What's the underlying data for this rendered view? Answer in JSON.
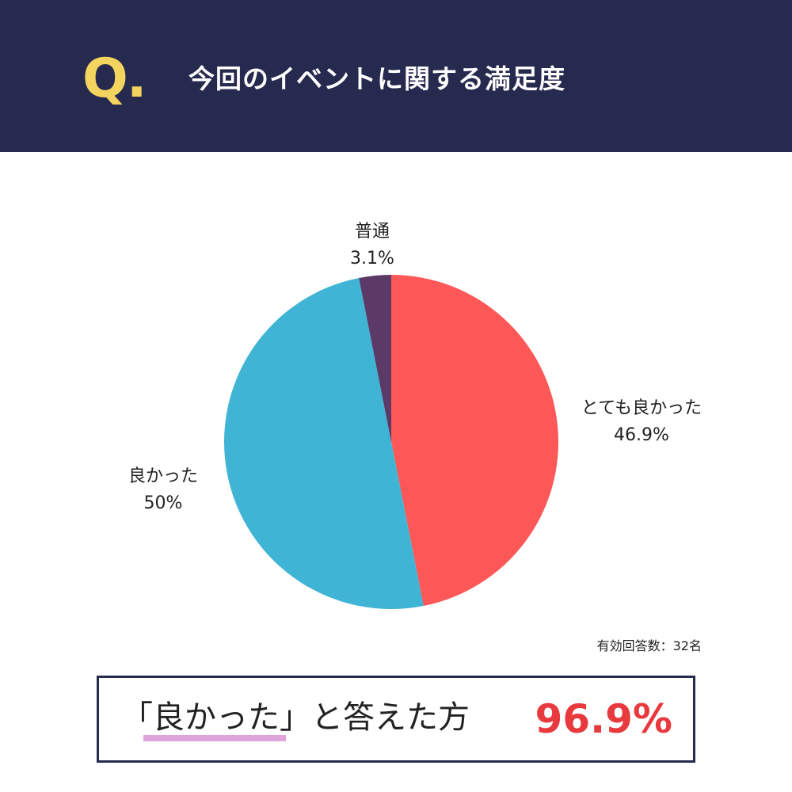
{
  "header": {
    "q_mark": "Q.",
    "title": "今回のイベントに関する満足度"
  },
  "colors": {
    "header_bg": "#262a4e",
    "q_mark": "#f3d45f",
    "accent_red": "#e8393e",
    "underline": "#e0a3dc"
  },
  "chart_data": {
    "type": "pie",
    "title": "",
    "slices": [
      {
        "label": "とても良かった",
        "value_text": "46.9%",
        "value": 46.9,
        "color": "#fd5757"
      },
      {
        "label": "良かった",
        "value_text": "50%",
        "value": 50.0,
        "color": "#40b4d5"
      },
      {
        "label": "普通",
        "value_text": "3.1%",
        "value": 3.1,
        "color": "#5b3a67"
      }
    ],
    "start_angle": "12 o'clock",
    "direction": "clockwise",
    "legend": "none (labels beside slices)"
  },
  "respondents": "有効回答数：32名",
  "summary": {
    "text": "「良かった」と答えた方",
    "value": "96.9%"
  }
}
